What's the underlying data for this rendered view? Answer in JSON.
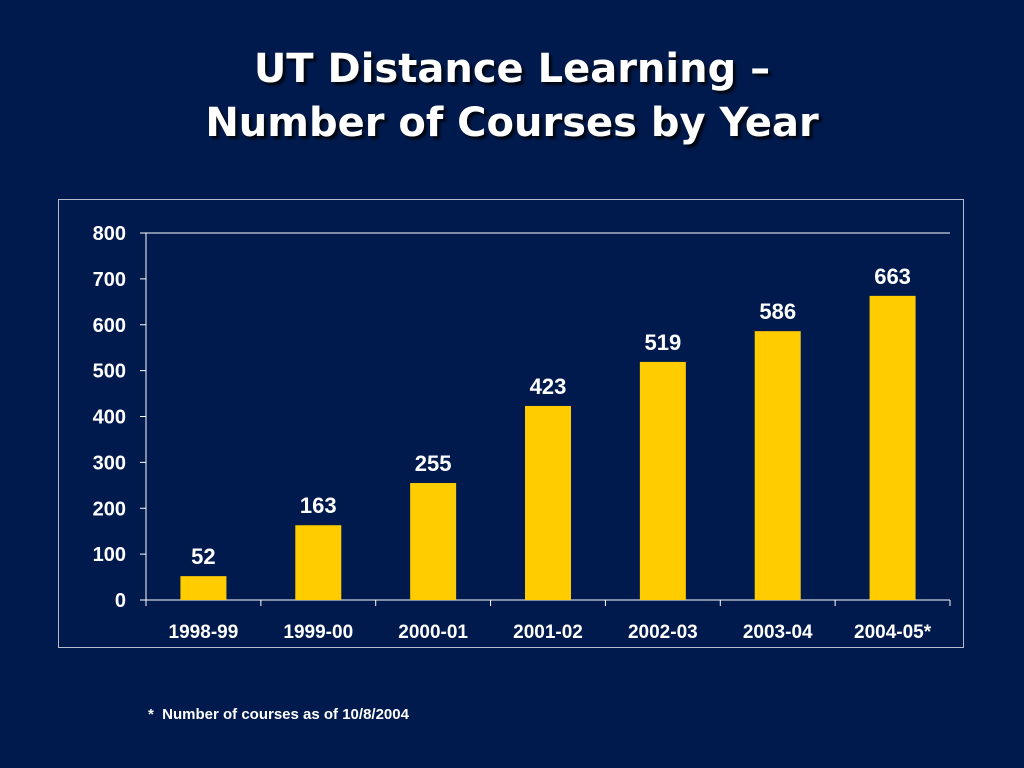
{
  "slide": {
    "title_line1": "UT Distance Learning –",
    "title_line2": "Number of Courses by Year",
    "footnote": "*  Number of courses as of 10/8/2004"
  },
  "colors": {
    "background": "#001a4d",
    "bar": "#ffcc00",
    "text": "#ffffff",
    "axis": "#ffffff"
  },
  "chart_data": {
    "type": "bar",
    "title": "",
    "xlabel": "",
    "ylabel": "",
    "categories": [
      "1998-99",
      "1999-00",
      "2000-01",
      "2001-02",
      "2002-03",
      "2003-04",
      "2004-05*"
    ],
    "values": [
      52,
      163,
      255,
      423,
      519,
      586,
      663
    ],
    "data_labels": [
      "52",
      "163",
      "255",
      "423",
      "519",
      "586",
      "663"
    ],
    "ylim": [
      0,
      800
    ],
    "yticks": [
      0,
      100,
      200,
      300,
      400,
      500,
      600,
      700,
      800
    ],
    "ytick_labels": [
      "0",
      "100",
      "200",
      "300",
      "400",
      "500",
      "600",
      "700",
      "800"
    ],
    "grid": false,
    "legend": "none"
  }
}
